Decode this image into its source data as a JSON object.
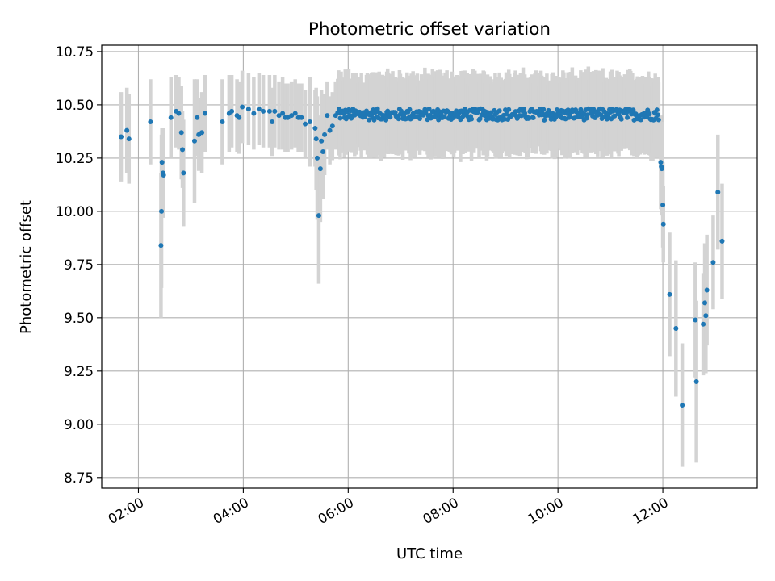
{
  "chart_data": {
    "type": "scatter",
    "title": "Photometric offset variation",
    "xlabel": "UTC time",
    "ylabel": "Photometric offset",
    "x_unit": "hours UTC",
    "xlim": [
      1.3,
      13.8
    ],
    "ylim": [
      8.7,
      10.78
    ],
    "xticks": [
      2,
      4,
      6,
      8,
      10,
      12
    ],
    "xtick_labels": [
      "02:00",
      "04:00",
      "06:00",
      "08:00",
      "10:00",
      "12:00"
    ],
    "yticks": [
      8.75,
      9.0,
      9.25,
      9.5,
      9.75,
      10.0,
      10.25,
      10.5,
      10.75
    ],
    "ytick_labels": [
      "8.75",
      "9.00",
      "9.25",
      "9.50",
      "9.75",
      "10.00",
      "10.25",
      "10.50",
      "10.75"
    ],
    "grid": true,
    "colors": {
      "points": "#1f77b4",
      "error_bars": "#d3d3d3",
      "grid": "#b0b0b0",
      "axes": "#000000"
    },
    "series": [
      {
        "x": [
          1.67,
          1.78,
          1.82,
          2.23,
          2.43,
          2.44,
          2.45,
          2.47,
          2.48,
          2.62,
          2.72,
          2.77,
          2.82,
          2.84,
          2.86,
          3.07,
          3.12,
          3.15,
          3.21,
          3.27,
          3.6,
          3.73,
          3.78,
          3.88,
          3.92,
          3.98,
          4.1,
          4.2,
          4.3,
          4.38,
          4.5,
          4.55,
          4.6,
          4.68,
          4.75,
          4.8,
          4.85,
          4.92,
          4.99,
          5.05,
          5.11,
          5.18,
          5.27,
          5.37,
          5.39,
          5.41,
          5.44,
          5.47,
          5.49,
          5.52,
          5.55,
          5.6,
          5.65,
          5.7,
          5.76,
          5.83,
          11.96,
          11.97,
          11.98,
          12.0,
          12.01,
          12.13,
          12.25,
          12.37,
          12.62,
          12.64,
          12.77,
          12.8,
          12.82,
          12.84,
          12.96,
          13.05,
          13.13
        ],
        "y": [
          10.35,
          10.38,
          10.34,
          10.42,
          9.84,
          10.0,
          10.23,
          10.18,
          10.17,
          10.44,
          10.47,
          10.46,
          10.37,
          10.29,
          10.18,
          10.33,
          10.44,
          10.36,
          10.37,
          10.46,
          10.42,
          10.46,
          10.47,
          10.45,
          10.44,
          10.49,
          10.48,
          10.46,
          10.48,
          10.47,
          10.47,
          10.42,
          10.47,
          10.45,
          10.46,
          10.44,
          10.44,
          10.45,
          10.46,
          10.44,
          10.44,
          10.41,
          10.42,
          10.39,
          10.34,
          10.25,
          9.98,
          10.2,
          10.33,
          10.28,
          10.36,
          10.45,
          10.38,
          10.4,
          10.45,
          10.48,
          10.23,
          10.21,
          10.2,
          10.03,
          9.94,
          9.61,
          9.45,
          9.09,
          9.49,
          9.2,
          9.47,
          9.57,
          9.51,
          9.63,
          9.76,
          10.09,
          9.86
        ],
        "yerr": [
          0.21,
          0.2,
          0.21,
          0.2,
          0.34,
          0.36,
          0.16,
          0.21,
          0.2,
          0.19,
          0.17,
          0.17,
          0.22,
          0.18,
          0.25,
          0.29,
          0.18,
          0.17,
          0.19,
          0.18,
          0.2,
          0.18,
          0.17,
          0.17,
          0.17,
          0.17,
          0.17,
          0.17,
          0.17,
          0.17,
          0.17,
          0.16,
          0.17,
          0.16,
          0.17,
          0.16,
          0.16,
          0.16,
          0.16,
          0.16,
          0.16,
          0.16,
          0.21,
          0.18,
          0.24,
          0.29,
          0.32,
          0.25,
          0.24,
          0.22,
          0.19,
          0.16,
          0.16,
          0.16,
          0.16,
          0.16,
          0.22,
          0.2,
          0.22,
          0.2,
          0.18,
          0.29,
          0.32,
          0.29,
          0.27,
          0.38,
          0.24,
          0.28,
          0.27,
          0.26,
          0.22,
          0.27,
          0.27
        ]
      }
    ],
    "dense_segments": [
      {
        "x_start": 5.8,
        "x_end": 11.92,
        "count": 380,
        "y_center": 10.455,
        "y_spread": 0.027,
        "yerr_range": [
          0.14,
          0.2
        ]
      }
    ]
  }
}
